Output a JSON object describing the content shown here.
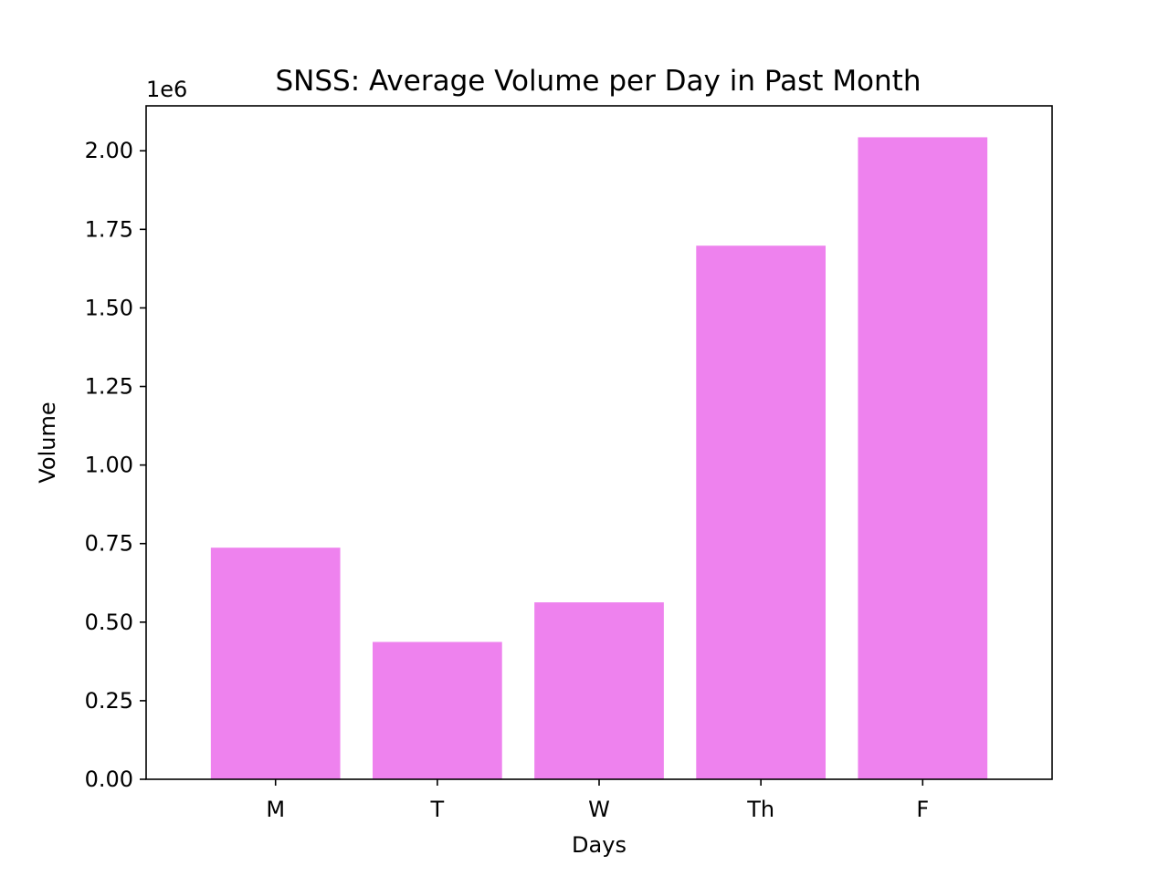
{
  "chart_data": {
    "type": "bar",
    "title": "SNSS: Average Volume per Day in Past Month",
    "xlabel": "Days",
    "ylabel": "Volume",
    "y_offset_label": "1e6",
    "y_scale": 1000000,
    "categories": [
      "M",
      "T",
      "W",
      "Th",
      "F"
    ],
    "values": [
      737000,
      437000,
      563000,
      1698000,
      2043000
    ],
    "ylim": [
      0,
      2143000
    ],
    "yticks": [
      0,
      250000,
      500000,
      750000,
      1000000,
      1250000,
      1500000,
      1750000,
      2000000
    ],
    "ytick_labels": [
      "0.00",
      "0.25",
      "0.50",
      "0.75",
      "1.00",
      "1.25",
      "1.50",
      "1.75",
      "2.00"
    ],
    "bar_color": "#ee82ee",
    "grid": false,
    "legend": "none"
  }
}
